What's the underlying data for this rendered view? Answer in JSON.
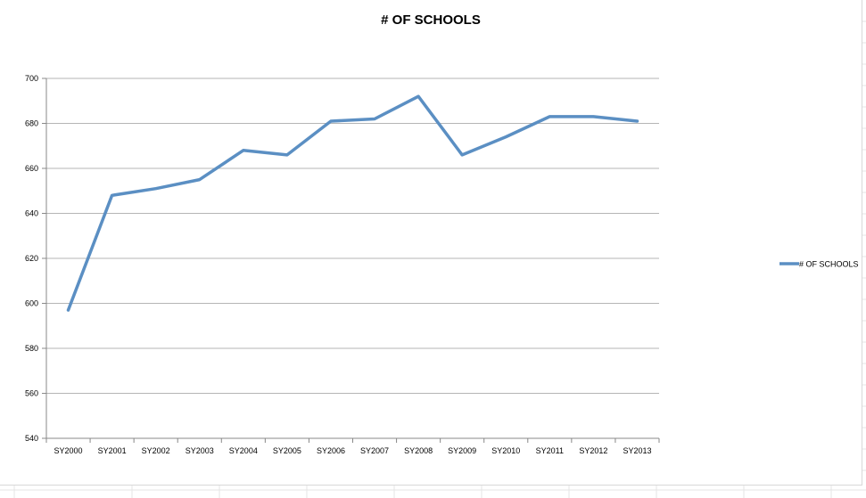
{
  "chart_data": {
    "type": "line",
    "title": "# OF SCHOOLS",
    "xlabel": "",
    "ylabel": "",
    "categories": [
      "SY2000",
      "SY2001",
      "SY2002",
      "SY2003",
      "SY2004",
      "SY2005",
      "SY2006",
      "SY2007",
      "SY2008",
      "SY2009",
      "SY2010",
      "SY2011",
      "SY2012",
      "SY2013"
    ],
    "series": [
      {
        "name": "# OF SCHOOLS",
        "values": [
          597,
          648,
          651,
          655,
          668,
          666,
          681,
          682,
          692,
          666,
          674,
          683,
          683,
          681
        ],
        "color": "#5b8fc3"
      }
    ],
    "ylim": [
      540,
      700
    ],
    "yticks": [
      540,
      560,
      580,
      600,
      620,
      640,
      660,
      680,
      700
    ],
    "grid": true,
    "legend": "right"
  }
}
